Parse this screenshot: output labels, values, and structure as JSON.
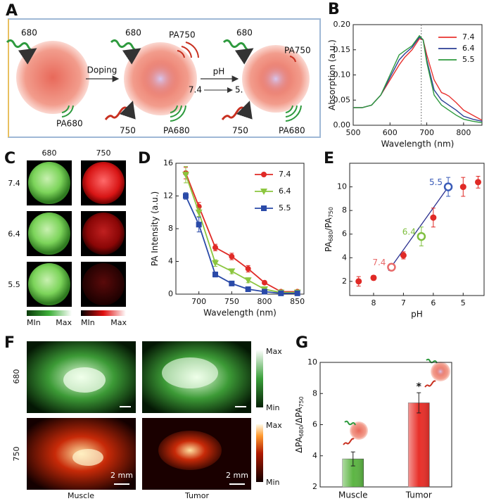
{
  "panel_labels": [
    "A",
    "B",
    "C",
    "D",
    "E",
    "F",
    "G"
  ],
  "diagram": {
    "in_1": "680",
    "out_1": "PA680",
    "step_1": "Doping",
    "in_2": "680",
    "pa_2": "PA750",
    "in2_2": "750",
    "out_2": "PA680",
    "step_2": "pH",
    "step_2_from": "7.4",
    "step_2_to": "5.",
    "in_3": "680",
    "pa_3": "PA750",
    "in2_3": "750",
    "out_3": "PA680"
  },
  "images_c": {
    "columns": [
      "680",
      "750"
    ],
    "rows": [
      "7.4",
      "6.4",
      "5.5"
    ],
    "colorbars": [
      {
        "min": "MIn",
        "max": "Max"
      },
      {
        "min": "MIn",
        "max": "Max"
      }
    ]
  },
  "images_f": {
    "rows": [
      "680",
      "750"
    ],
    "columns": [
      "Muscle",
      "Tumor"
    ],
    "colorbars": [
      {
        "max": "Max",
        "min": "Min"
      },
      {
        "max": "Max",
        "min": "Min"
      }
    ],
    "scale_bar": "2 mm"
  },
  "chart_data": [
    {
      "type": "line",
      "xlabel": "Wavelength (nm)",
      "ylabel": [
        "Absorption (a.u.)"
      ],
      "x": [
        500,
        525,
        550,
        575,
        600,
        625,
        640,
        660,
        680,
        690,
        700,
        720,
        740,
        750,
        760,
        780,
        800,
        825,
        850
      ],
      "series": [
        {
          "name": "7.4",
          "color": "#e8322f",
          "values": [
            0.035,
            0.035,
            0.04,
            0.06,
            0.09,
            0.12,
            0.135,
            0.15,
            0.172,
            0.17,
            0.14,
            0.09,
            0.065,
            0.062,
            0.058,
            0.045,
            0.03,
            0.02,
            0.01
          ]
        },
        {
          "name": "6.4",
          "color": "#2b3f94",
          "values": [
            0.035,
            0.035,
            0.04,
            0.06,
            0.095,
            0.13,
            0.142,
            0.155,
            0.175,
            0.17,
            0.13,
            0.07,
            0.05,
            0.045,
            0.04,
            0.03,
            0.018,
            0.012,
            0.008
          ]
        },
        {
          "name": "5.5",
          "color": "#2e9a3e",
          "values": [
            0.035,
            0.035,
            0.04,
            0.06,
            0.1,
            0.14,
            0.148,
            0.158,
            0.178,
            0.17,
            0.125,
            0.06,
            0.04,
            0.035,
            0.03,
            0.02,
            0.012,
            0.008,
            0.005
          ]
        }
      ],
      "vline": 685,
      "xlim": [
        500,
        850
      ],
      "xticks": [
        500,
        600,
        700,
        800
      ],
      "ylim": [
        0,
        0.2
      ],
      "yticks": [
        {
          "value": 0,
          "label": "0.00"
        },
        {
          "value": 0.05,
          "label": "0.05"
        },
        {
          "value": 0.1,
          "label": "0.10"
        },
        {
          "value": 0.15,
          "label": "0.15"
        },
        {
          "value": 0.2,
          "label": "0.20"
        }
      ],
      "legend": "upper right"
    },
    {
      "type": "line",
      "xlabel": "Wavelength (nm)",
      "ylabel": [
        "PA Intensity (a.u.)"
      ],
      "markers": true,
      "x": [
        680,
        700,
        725,
        750,
        775,
        800,
        825,
        850
      ],
      "series": [
        {
          "name": "7.4",
          "color": "#e02a26",
          "marker": "circle",
          "values": [
            14.8,
            10.7,
            5.7,
            4.6,
            3.1,
            1.4,
            0.3,
            0.3
          ],
          "errors": [
            0.7,
            0.5,
            0.4,
            0.4,
            0.4,
            0.2,
            0.1,
            0.1
          ]
        },
        {
          "name": "6.4",
          "color": "#8cc63f",
          "marker": "triangle",
          "values": [
            14.6,
            10.0,
            3.8,
            2.8,
            1.7,
            0.6,
            0.2,
            0.2
          ],
          "errors": [
            1.0,
            0.5,
            0.4,
            0.3,
            0.3,
            0.2,
            0.1,
            0.1
          ]
        },
        {
          "name": "5.5",
          "color": "#2a4aa8",
          "marker": "square",
          "values": [
            12.0,
            8.5,
            2.4,
            1.3,
            0.6,
            0.3,
            0.1,
            0.1
          ],
          "errors": [
            0.4,
            0.9,
            0.3,
            0.2,
            0.2,
            0.1,
            0.1,
            0.1
          ]
        }
      ],
      "xlim": [
        665,
        860
      ],
      "xticks": [
        700,
        750,
        800,
        850
      ],
      "ylim": [
        0,
        16
      ],
      "yticks": [
        0,
        4,
        8,
        12,
        16
      ],
      "legend": "upper right"
    },
    {
      "type": "scatter",
      "xlabel": "pH",
      "ylabel": [
        "PA",
        "680",
        "/PA",
        "750"
      ],
      "x": [
        8.5,
        8,
        7.4,
        7,
        6.4,
        6,
        5.5,
        5,
        4.5
      ],
      "values": [
        2.0,
        2.3,
        3.2,
        4.2,
        5.8,
        7.4,
        10.0,
        10.0,
        10.4
      ],
      "errors": [
        0.4,
        0.2,
        0.3,
        0.3,
        0.8,
        0.8,
        0.8,
        0.8,
        0.5
      ],
      "point_colors": [
        "#e02a26",
        "#e02a26",
        "#e86a6a",
        "#e02a26",
        "#7fbf3f",
        "#e02a26",
        "#3a5bb8",
        "#e02a26",
        "#e02a26"
      ],
      "point_labels": [
        null,
        null,
        "7.4",
        null,
        "6.4",
        null,
        "5.5",
        null,
        null
      ],
      "fit": {
        "x": [
          7.5,
          5.5
        ],
        "y": [
          2.9,
          10.0
        ],
        "color": "#2b2f8f"
      },
      "xlim": [
        8.8,
        4.3
      ],
      "xticks": [
        8,
        7,
        6,
        5
      ],
      "ylim": [
        0.8,
        12
      ],
      "yticks": [
        2,
        4,
        6,
        8,
        10
      ]
    },
    {
      "type": "bar",
      "ylabel": [
        "ΔPA",
        "680",
        "/ΔPA",
        "750"
      ],
      "categories": [
        "Muscle",
        "Tumor"
      ],
      "values": [
        3.8,
        7.4
      ],
      "errors": [
        0.45,
        0.65
      ],
      "colors": [
        "#5db544",
        "#e8302a"
      ],
      "bar_labels": [
        null,
        "*"
      ],
      "ylim": [
        2,
        10
      ],
      "yticks": [
        2,
        4,
        6,
        8,
        10
      ]
    }
  ]
}
